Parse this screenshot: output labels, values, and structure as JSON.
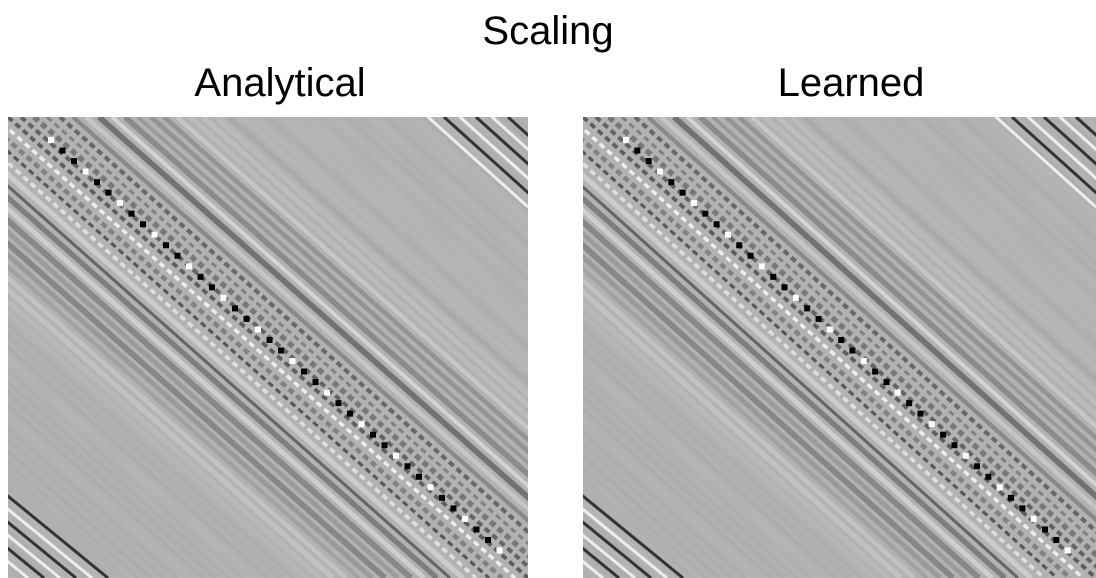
{
  "title": "Scaling",
  "panels": [
    {
      "title": "Analytical"
    },
    {
      "title": "Learned"
    }
  ]
}
